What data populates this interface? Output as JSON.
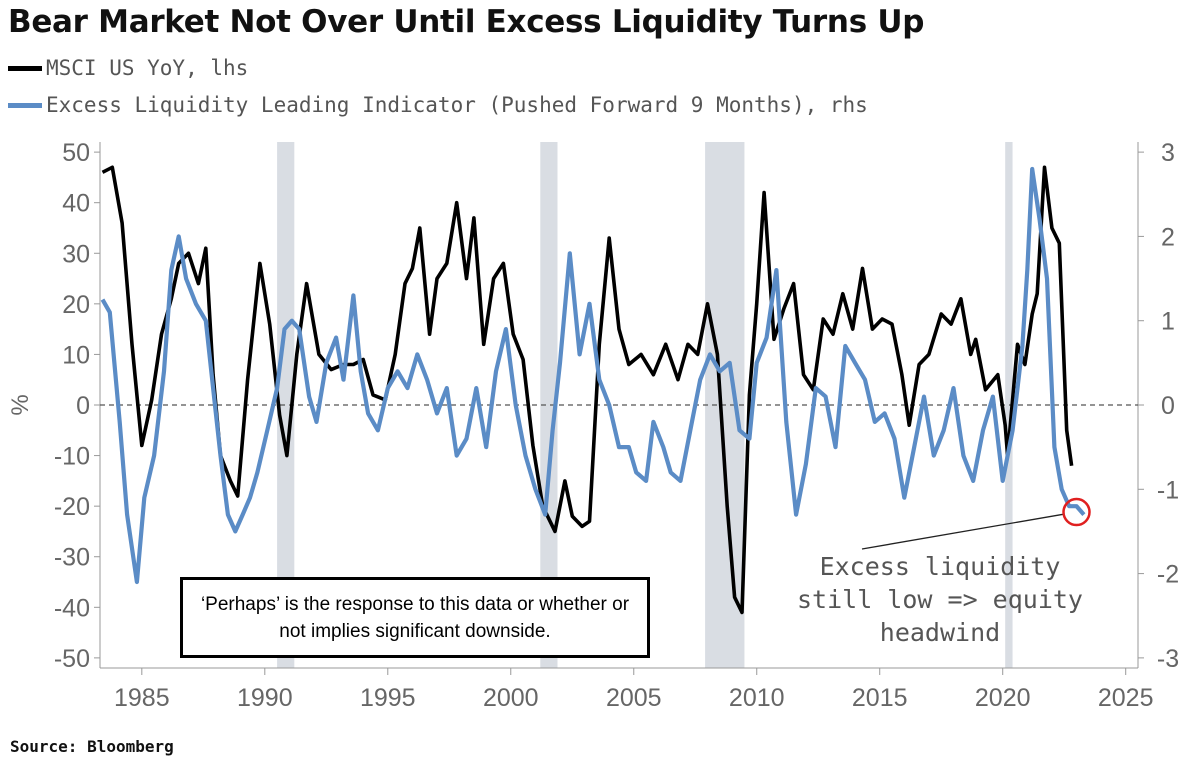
{
  "chart_data": {
    "type": "line",
    "title": "Bear Market Not Over Until Excess Liquidity Turns Up",
    "source": "Source: Bloomberg",
    "ylabel_left": "%",
    "yticks_left": [
      "50",
      "40",
      "30",
      "20",
      "10",
      "0",
      "-10",
      "-20",
      "-30",
      "-40",
      "-50"
    ],
    "ylim_left": [
      -52,
      52
    ],
    "yticks_right": [
      "3",
      "2",
      "1",
      "0",
      "-1",
      "-2",
      "-3"
    ],
    "ylim_right": [
      -3.12,
      3.12
    ],
    "xticks": [
      "1985",
      "1990",
      "1995",
      "2000",
      "2005",
      "2010",
      "2015",
      "2020",
      "2025"
    ],
    "xlim": [
      1983.3,
      2025.5
    ],
    "zero_line": "dashed",
    "shaded_periods": [
      [
        1990.5,
        1991.2
      ],
      [
        2001.2,
        2001.9
      ],
      [
        2007.9,
        2009.5
      ],
      [
        2020.1,
        2020.4
      ]
    ],
    "series": [
      {
        "name": "MSCI US YoY, lhs",
        "axis": "left",
        "color": "#000000",
        "x": [
          1983.4,
          1983.8,
          1984.2,
          1984.6,
          1985.0,
          1985.4,
          1985.8,
          1986.2,
          1986.5,
          1986.9,
          1987.3,
          1987.6,
          1987.9,
          1988.2,
          1988.6,
          1988.9,
          1989.3,
          1989.8,
          1990.2,
          1990.6,
          1990.9,
          1991.3,
          1991.7,
          1992.2,
          1992.7,
          1993.2,
          1993.6,
          1994.0,
          1994.4,
          1994.9,
          1995.3,
          1995.7,
          1996.0,
          1996.3,
          1996.7,
          1997.0,
          1997.4,
          1997.8,
          1998.2,
          1998.5,
          1998.9,
          1999.3,
          1999.7,
          2000.1,
          2000.5,
          2000.9,
          2001.3,
          2001.8,
          2002.2,
          2002.5,
          2002.9,
          2003.2,
          2003.6,
          2004.0,
          2004.4,
          2004.8,
          2005.3,
          2005.8,
          2006.3,
          2006.8,
          2007.2,
          2007.6,
          2008.0,
          2008.4,
          2008.8,
          2009.1,
          2009.4,
          2009.7,
          2010.0,
          2010.3,
          2010.7,
          2011.1,
          2011.5,
          2011.9,
          2012.3,
          2012.7,
          2013.1,
          2013.5,
          2013.9,
          2014.3,
          2014.7,
          2015.1,
          2015.5,
          2015.9,
          2016.2,
          2016.6,
          2017.0,
          2017.5,
          2017.9,
          2018.3,
          2018.7,
          2018.9,
          2019.3,
          2019.8,
          2020.1,
          2020.2,
          2020.6,
          2020.9,
          2021.2,
          2021.4,
          2021.7,
          2022.0,
          2022.3,
          2022.6,
          2022.8
        ],
        "values": [
          46,
          47,
          36,
          12,
          -8,
          1,
          14,
          21,
          28,
          30,
          24,
          31,
          6,
          -10,
          -15,
          -18,
          5,
          28,
          16,
          -2,
          -10,
          10,
          24,
          10,
          7,
          8,
          8,
          9,
          2,
          1,
          10,
          24,
          27,
          35,
          14,
          25,
          28,
          40,
          25,
          37,
          12,
          25,
          28,
          14,
          9,
          -8,
          -20,
          -25,
          -15,
          -22,
          -24,
          -23,
          12,
          33,
          15,
          8,
          10,
          6,
          12,
          5,
          12,
          10,
          20,
          10,
          -20,
          -38,
          -41,
          2,
          20,
          42,
          13,
          19,
          24,
          6,
          3,
          17,
          14,
          22,
          15,
          27,
          15,
          17,
          16,
          6,
          -4,
          8,
          10,
          18,
          16,
          21,
          10,
          13,
          3,
          6,
          -4,
          -10,
          12,
          8,
          18,
          22,
          47,
          35,
          32,
          -5,
          -12
        ]
      },
      {
        "name": "Excess Liquidity Leading Indicator (Pushed Forward 9 Months), rhs",
        "axis": "right",
        "color": "#5b8cc6",
        "x": [
          1983.4,
          1983.7,
          1984.1,
          1984.4,
          1984.8,
          1985.1,
          1985.5,
          1985.9,
          1986.2,
          1986.5,
          1986.8,
          1987.2,
          1987.6,
          1987.9,
          1988.2,
          1988.5,
          1988.8,
          1989.1,
          1989.4,
          1989.7,
          1990.1,
          1990.5,
          1990.8,
          1991.1,
          1991.4,
          1991.8,
          1992.1,
          1992.5,
          1992.9,
          1993.2,
          1993.6,
          1993.9,
          1994.2,
          1994.6,
          1995.0,
          1995.4,
          1995.8,
          1996.2,
          1996.6,
          1997.0,
          1997.4,
          1997.8,
          1998.2,
          1998.6,
          1999.0,
          1999.4,
          1999.8,
          2000.2,
          2000.6,
          2001.0,
          2001.4,
          2001.7,
          2002.0,
          2002.4,
          2002.8,
          2003.2,
          2003.6,
          2004.0,
          2004.4,
          2004.8,
          2005.1,
          2005.5,
          2005.8,
          2006.2,
          2006.5,
          2006.9,
          2007.3,
          2007.7,
          2008.1,
          2008.5,
          2008.9,
          2009.3,
          2009.7,
          2010.0,
          2010.4,
          2010.8,
          2011.2,
          2011.6,
          2012.0,
          2012.4,
          2012.8,
          2013.2,
          2013.6,
          2014.0,
          2014.4,
          2014.8,
          2015.2,
          2015.6,
          2016.0,
          2016.4,
          2016.8,
          2017.2,
          2017.6,
          2018.0,
          2018.4,
          2018.8,
          2019.2,
          2019.6,
          2020.0,
          2020.4,
          2020.8,
          2021.0,
          2021.2,
          2021.5,
          2021.8,
          2022.1,
          2022.4,
          2022.7,
          2023.0,
          2023.3
        ],
        "values": [
          1.25,
          1.1,
          -0.2,
          -1.3,
          -2.1,
          -1.1,
          -0.6,
          0.4,
          1.6,
          2.0,
          1.5,
          1.2,
          1.0,
          0.2,
          -0.6,
          -1.3,
          -1.5,
          -1.3,
          -1.1,
          -0.8,
          -0.3,
          0.2,
          0.9,
          1.0,
          0.9,
          0.1,
          -0.2,
          0.5,
          0.8,
          0.3,
          1.3,
          0.4,
          -0.1,
          -0.3,
          0.2,
          0.4,
          0.2,
          0.6,
          0.3,
          -0.1,
          0.2,
          -0.6,
          -0.4,
          0.2,
          -0.5,
          0.4,
          0.9,
          0.0,
          -0.6,
          -1.0,
          -1.3,
          -0.3,
          0.5,
          1.8,
          0.6,
          1.2,
          0.3,
          0.0,
          -0.5,
          -0.5,
          -0.8,
          -0.9,
          -0.2,
          -0.5,
          -0.8,
          -0.9,
          -0.3,
          0.3,
          0.6,
          0.4,
          0.5,
          -0.3,
          -0.4,
          0.5,
          0.8,
          1.6,
          -0.2,
          -1.3,
          -0.7,
          0.2,
          0.1,
          -0.5,
          0.7,
          0.5,
          0.3,
          -0.2,
          -0.1,
          -0.4,
          -1.1,
          -0.5,
          0.1,
          -0.6,
          -0.3,
          0.2,
          -0.6,
          -0.9,
          -0.3,
          0.1,
          -0.9,
          -0.3,
          0.7,
          1.6,
          2.8,
          2.2,
          1.5,
          -0.5,
          -1.0,
          -1.2,
          -1.2,
          -1.3
        ]
      }
    ],
    "annotation": {
      "text": "Excess liquidity\nstill low => equity\nheadwind",
      "target_x": 2023.0,
      "target_y_right": -1.27
    }
  },
  "note_box": "‘Perhaps’ is the response to this data or whether or not implies significant downside."
}
